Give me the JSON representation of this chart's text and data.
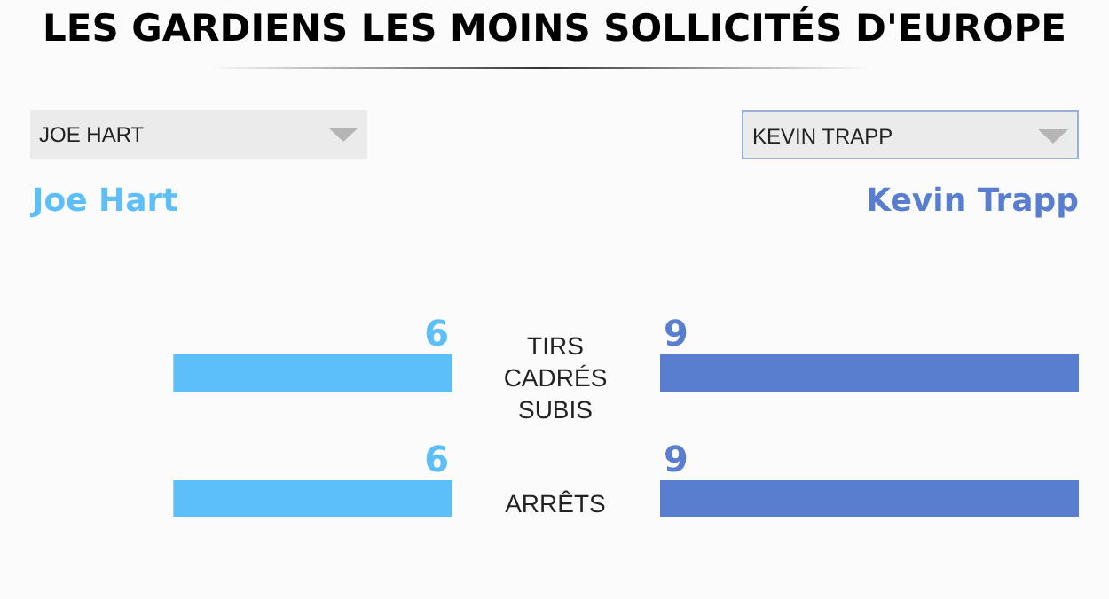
{
  "chart_data": [
    {
      "type": "bar",
      "title": "LES GARDIENS LES MOINS SOLLICITÉS D'EUROPE",
      "orientation": "horizontal",
      "data_labels": true,
      "categories": [
        "TIRS CADRÉS SUBIS",
        "ARRÊTS"
      ],
      "series": [
        {
          "name": "Joe Hart",
          "color": "#5cbffa",
          "values": [
            6,
            6
          ]
        }
      ],
      "annotations": [
        "JOE HART"
      ]
    },
    {
      "type": "bar",
      "orientation": "horizontal",
      "data_labels": true,
      "categories": [
        null,
        null
      ],
      "series": [
        {
          "name": "Kevin Trapp",
          "color": "#5a7ecf",
          "values": [
            9,
            9
          ]
        }
      ],
      "annotations": [
        "KEVIN TRAPP"
      ]
    }
  ]
}
